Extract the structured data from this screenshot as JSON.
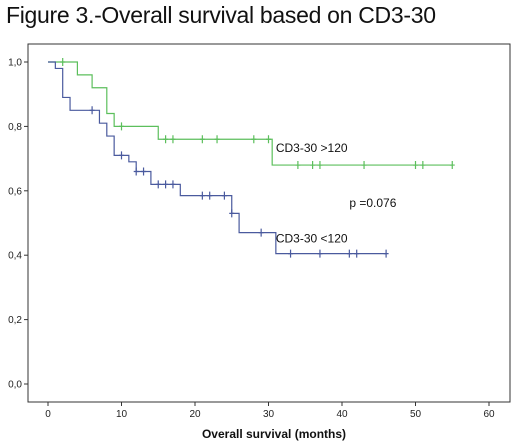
{
  "figure_title": "Figure 3.-Overall survival based on CD3-30",
  "chart_data": {
    "type": "line",
    "subtype": "kaplan-meier step",
    "title": "Figure 3.-Overall survival based on CD3-30",
    "xlabel": "Overall survival (months)",
    "ylabel": "",
    "xlim": [
      0,
      60
    ],
    "ylim": [
      0,
      1
    ],
    "x_ticks": [
      "0",
      "10",
      "20",
      "30",
      "40",
      "50",
      "60"
    ],
    "y_ticks": [
      "0,0",
      "0,2",
      "0,4",
      "0,6",
      "0,8",
      "1,0"
    ],
    "grid": false,
    "series": [
      {
        "name": "CD3-30 >120",
        "color": "#5cbf5c",
        "steps": [
          [
            0,
            1.0
          ],
          [
            4,
            0.96
          ],
          [
            6,
            0.92
          ],
          [
            8,
            0.84
          ],
          [
            9,
            0.8
          ],
          [
            15,
            0.76
          ],
          [
            30.5,
            0.68
          ],
          [
            55,
            0.68
          ]
        ],
        "censored": [
          [
            2,
            1.0
          ],
          [
            10,
            0.8
          ],
          [
            16,
            0.76
          ],
          [
            17,
            0.76
          ],
          [
            21,
            0.76
          ],
          [
            23,
            0.76
          ],
          [
            28,
            0.76
          ],
          [
            30,
            0.76
          ],
          [
            34,
            0.68
          ],
          [
            36,
            0.68
          ],
          [
            37,
            0.68
          ],
          [
            43,
            0.68
          ],
          [
            50,
            0.68
          ],
          [
            51,
            0.68
          ],
          [
            55,
            0.68
          ]
        ]
      },
      {
        "name": "CD3-30 <120",
        "color": "#4a5a9e",
        "steps": [
          [
            0,
            1.0
          ],
          [
            1,
            0.98
          ],
          [
            2,
            0.89
          ],
          [
            3,
            0.85
          ],
          [
            7,
            0.81
          ],
          [
            8,
            0.77
          ],
          [
            9,
            0.71
          ],
          [
            11,
            0.69
          ],
          [
            12,
            0.66
          ],
          [
            14,
            0.62
          ],
          [
            18,
            0.585
          ],
          [
            25,
            0.53
          ],
          [
            26,
            0.47
          ],
          [
            31,
            0.405
          ],
          [
            46,
            0.405
          ]
        ],
        "censored": [
          [
            6,
            0.85
          ],
          [
            10,
            0.71
          ],
          [
            12,
            0.66
          ],
          [
            13,
            0.66
          ],
          [
            15,
            0.62
          ],
          [
            16,
            0.62
          ],
          [
            17,
            0.62
          ],
          [
            21,
            0.585
          ],
          [
            22,
            0.585
          ],
          [
            24,
            0.585
          ],
          [
            25,
            0.53
          ],
          [
            29,
            0.47
          ],
          [
            33,
            0.405
          ],
          [
            37,
            0.405
          ],
          [
            41,
            0.405
          ],
          [
            42,
            0.405
          ],
          [
            46,
            0.405
          ]
        ]
      }
    ],
    "annotations": [
      {
        "text": "CD3-30 >120",
        "x": 31,
        "y": 0.72
      },
      {
        "text": "p =0.076",
        "x": 41,
        "y": 0.55
      },
      {
        "text": "CD3-30 <120",
        "x": 31,
        "y": 0.44
      }
    ]
  }
}
